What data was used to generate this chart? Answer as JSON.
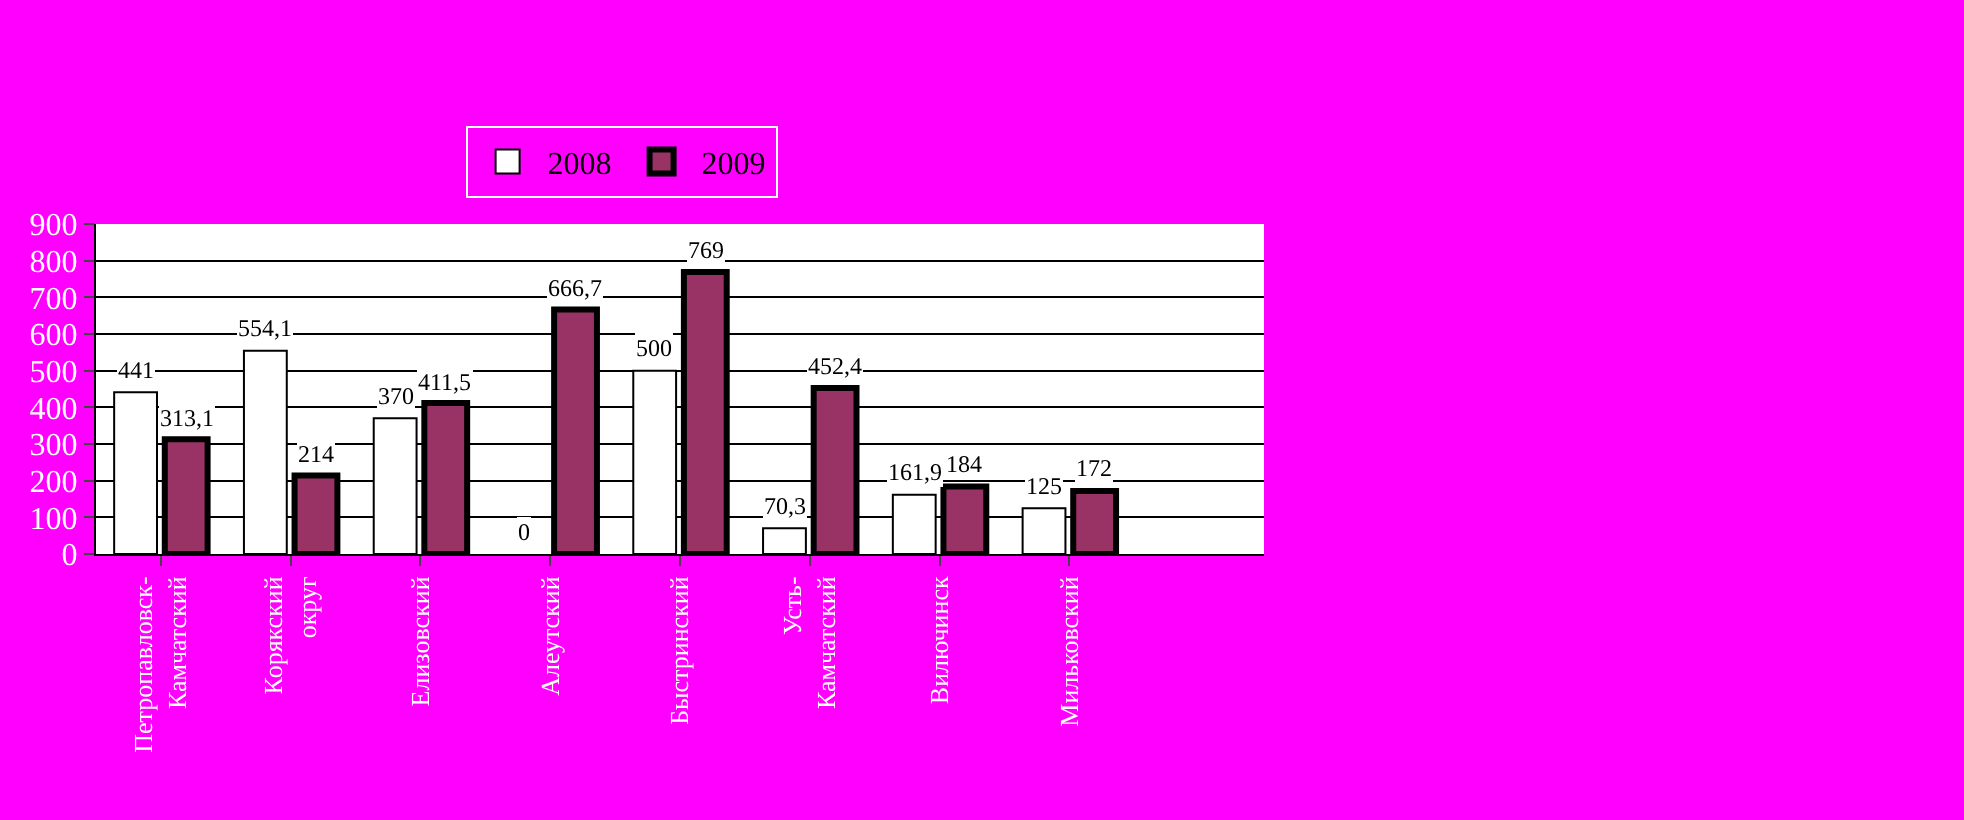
{
  "chart_data": {
    "type": "bar",
    "categories": [
      "Петропавловск-\nКамчатский",
      "Корякский\nокруг",
      "Елизовский",
      "Алеутский",
      "Быстринский",
      "Усть-\nКамчатский",
      "Вилючинск",
      "Мильковский",
      null
    ],
    "series": [
      {
        "name": "2008",
        "color": "#ffffff",
        "values": [
          441,
          554.1,
          370,
          0,
          500,
          70.3,
          161.9,
          125,
          null
        ],
        "value_labels": [
          "441",
          "554,1",
          "370",
          "0",
          "500",
          "70,3",
          "161,9",
          "125",
          null
        ]
      },
      {
        "name": "2009",
        "color": "#993366",
        "values": [
          313.1,
          214,
          411.5,
          666.7,
          769,
          452.4,
          184,
          172,
          null
        ],
        "value_labels": [
          "313,1",
          "214",
          "411,5",
          "666,7",
          "769",
          "452,4",
          "184",
          "172",
          null
        ]
      }
    ],
    "ylim": [
      0,
      900
    ],
    "yticks": [
      0,
      100,
      200,
      300,
      400,
      500,
      600,
      700,
      800,
      900
    ],
    "grid": "y",
    "legend": "top"
  }
}
